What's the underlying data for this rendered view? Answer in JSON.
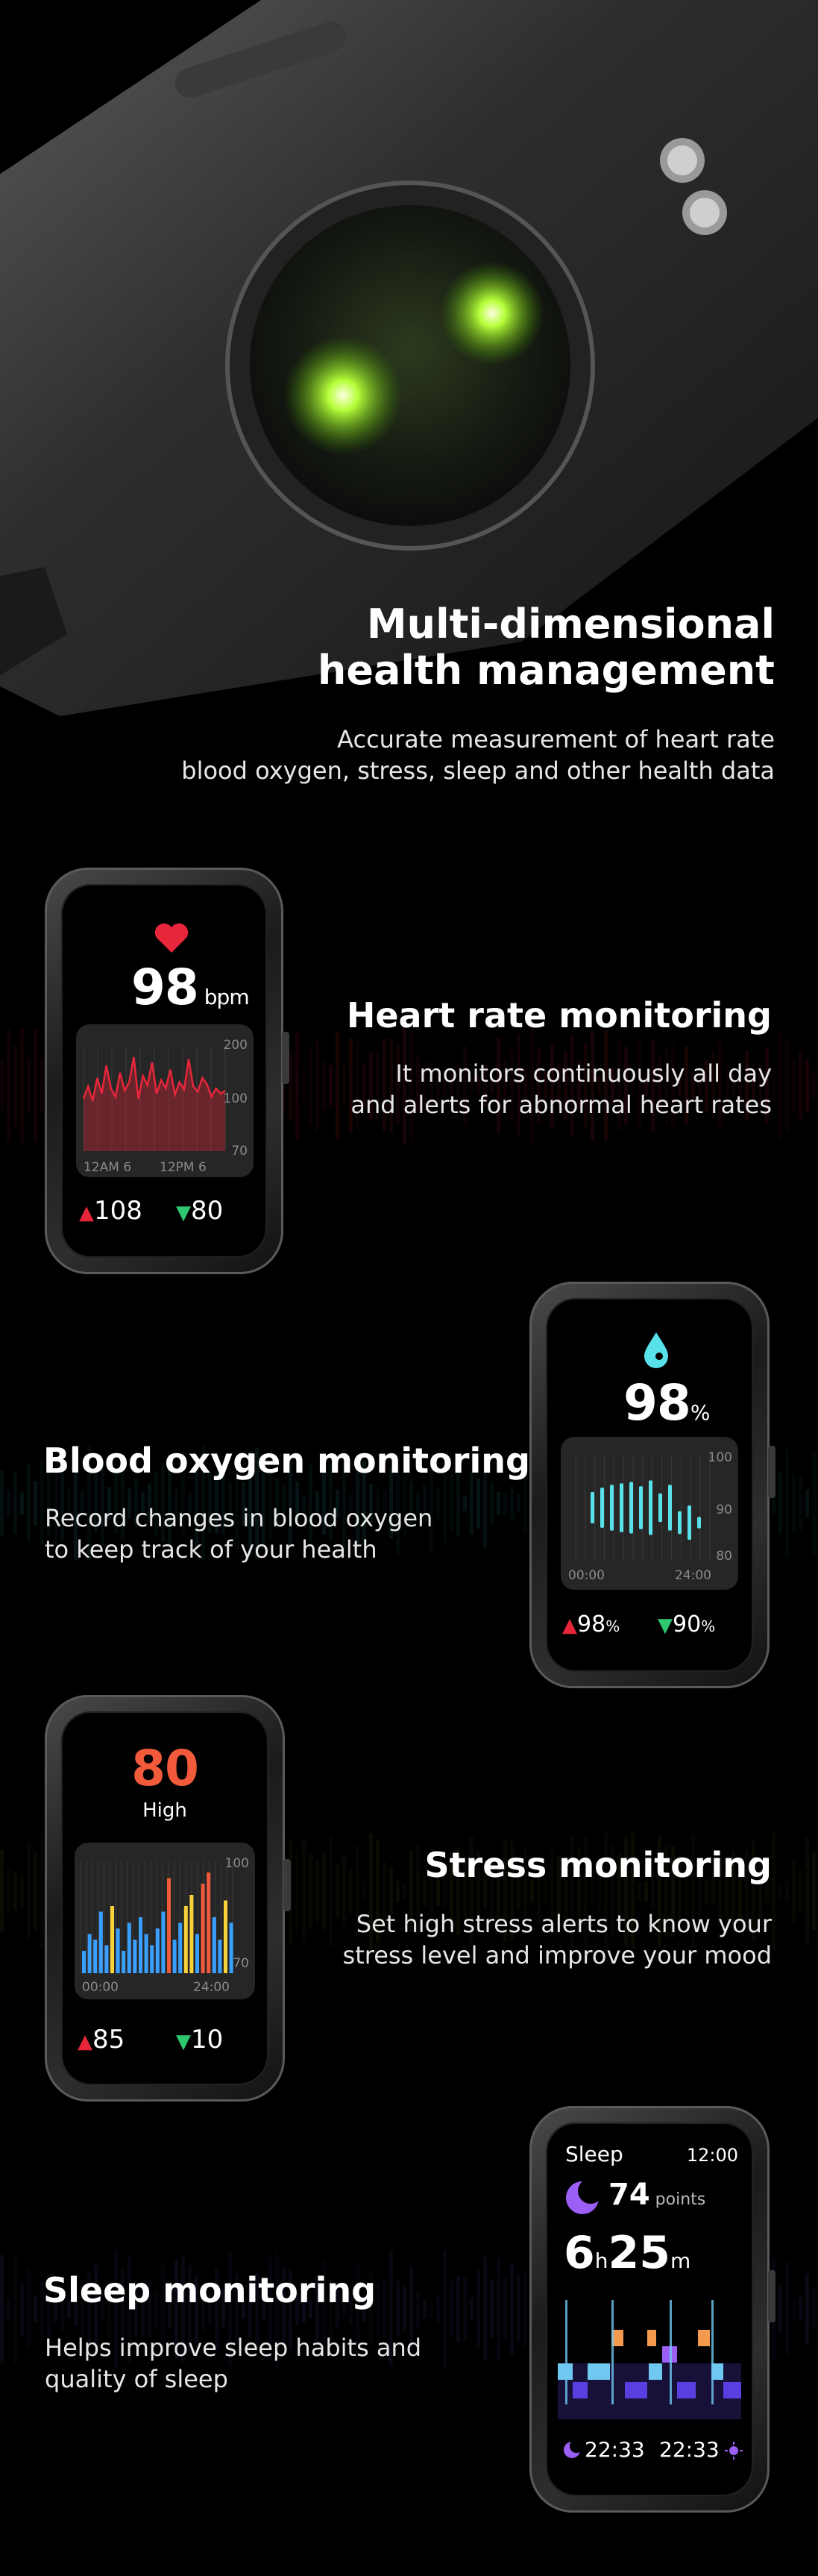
{
  "headline": {
    "title_line1": "Multi-dimensional",
    "title_line2": "health management",
    "subtitle_line1": "Accurate measurement of heart rate",
    "subtitle_line2": "blood oxygen, stress, sleep and other health data"
  },
  "heart": {
    "heading": "Heart rate monitoring",
    "desc_line1": "It monitors continuously all day",
    "desc_line2": "and alerts for abnormal heart rates",
    "value": "98",
    "unit": "bpm",
    "axis_top": "200",
    "axis_mid": "100",
    "axis_low": "70",
    "time_start": "12AM 6",
    "time_mid": "12PM 6",
    "max": "108",
    "min": "80",
    "accent": "#e8263a",
    "series": [
      50,
      62,
      48,
      70,
      55,
      82,
      60,
      52,
      75,
      58,
      66,
      90,
      50,
      72,
      63,
      85,
      55,
      68,
      60,
      78,
      54,
      66,
      59,
      88,
      62,
      57,
      70,
      64,
      52,
      60,
      55,
      58
    ]
  },
  "oxygen": {
    "heading": "Blood oxygen monitoring",
    "desc_line1": "Record changes in blood oxygen",
    "desc_line2": "to keep track of your health",
    "value": "98",
    "unit": "%",
    "axis_top": "100",
    "axis_mid": "90",
    "axis_low": "80",
    "time_start": "00:00",
    "time_end": "24:00",
    "max": "98",
    "max_unit": "%",
    "min": "90",
    "min_unit": "%",
    "accent": "#59e1e9",
    "bars": [
      0.55,
      0.7,
      0.8,
      0.85,
      0.9,
      0.75,
      0.95,
      0.5,
      0.8,
      0.4,
      0.6,
      0.2
    ]
  },
  "stress": {
    "heading": "Stress monitoring",
    "desc_line1": "Set high stress alerts to know your",
    "desc_line2": "stress level and improve your mood",
    "value": "80",
    "level": "High",
    "axis_top": "100",
    "axis_low": "70",
    "time_start": "00:00",
    "time_end": "24:00",
    "max": "85",
    "min": "10",
    "accent": "#f15a3a",
    "bars": [
      0.2,
      0.35,
      0.3,
      0.55,
      0.25,
      0.6,
      0.4,
      0.2,
      0.45,
      0.3,
      0.5,
      0.35,
      0.25,
      0.4,
      0.55,
      0.85,
      0.3,
      0.45,
      0.6,
      0.7,
      0.35,
      0.8,
      0.9,
      0.5,
      0.3,
      0.65,
      0.45
    ]
  },
  "sleep": {
    "heading": "Sleep monitoring",
    "desc_line1": "Helps improve sleep habits and",
    "desc_line2": "quality of sleep",
    "app_label": "Sleep",
    "clock": "12:00",
    "score": "74",
    "score_unit": "points",
    "hours": "6",
    "hours_unit": "h",
    "minutes": "25",
    "minutes_unit": "m",
    "bedtime": "22:33",
    "waketime": "22:33",
    "colors": {
      "awake": "#f39a4e",
      "light": "#6fc8f0",
      "deep": "#5a3fe0",
      "rem": "#9b5ff5"
    }
  }
}
